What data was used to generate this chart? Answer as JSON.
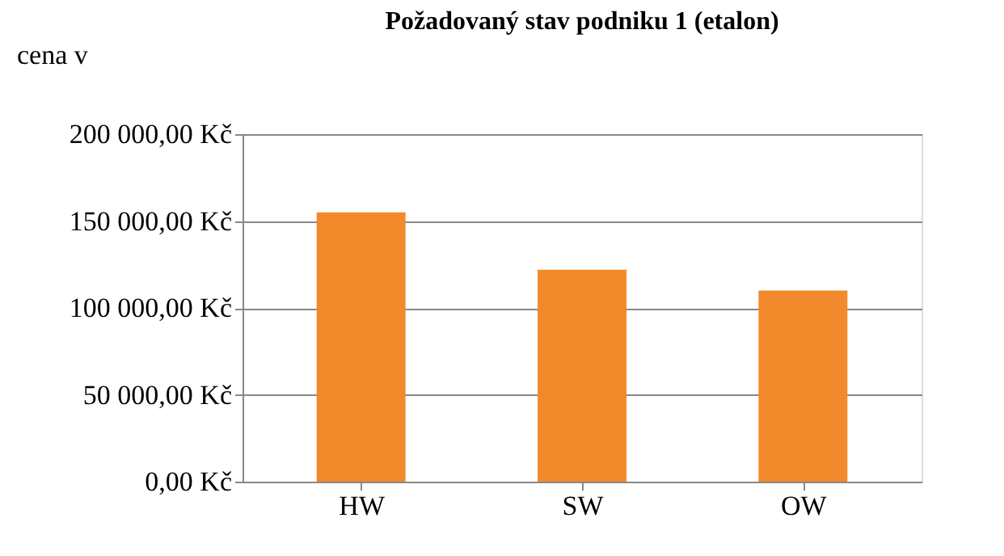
{
  "chart_data": {
    "type": "bar",
    "title": "Požadovaný stav podniku 1 (etalon)",
    "ylabel": "cena v",
    "categories": [
      "HW",
      "SW",
      "OW"
    ],
    "values": [
      155000,
      122000,
      110000
    ],
    "color": "#f28a2c",
    "ylim": [
      0,
      200000
    ],
    "yticks": [
      {
        "value": 0,
        "label": "0,00 Kč"
      },
      {
        "value": 50000,
        "label": "50 000,00 Kč"
      },
      {
        "value": 100000,
        "label": "100 000,00 Kč"
      },
      {
        "value": 150000,
        "label": "150 000,00 Kč"
      },
      {
        "value": 200000,
        "label": "200 000,00 Kč"
      }
    ],
    "grid": "y"
  }
}
